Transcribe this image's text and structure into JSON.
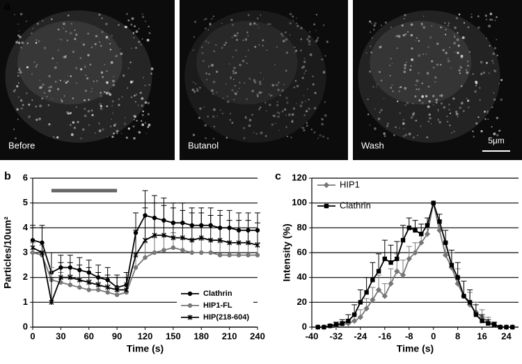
{
  "figure": {
    "panel_a_label": "a",
    "images": [
      {
        "label": "Before",
        "brightness": 1.0
      },
      {
        "label": "Butanol",
        "brightness": 0.6
      },
      {
        "label": "Wash",
        "brightness": 0.95
      }
    ],
    "scale_bar": "5μm"
  },
  "chart_data": [
    {
      "type": "line",
      "panel_label": "b",
      "x_label": "Time (s)",
      "y_label": "Particles/10um²",
      "xlim": [
        0,
        240
      ],
      "xticks": [
        0,
        30,
        60,
        90,
        120,
        150,
        180,
        210,
        240
      ],
      "ylim": [
        0,
        6
      ],
      "yticks": [
        0,
        1,
        2,
        3,
        4,
        5,
        6
      ],
      "grid": true,
      "legend": "lower right",
      "bar_range": {
        "x": [
          20,
          90
        ],
        "y": 5.5,
        "color": "#666666"
      },
      "x": [
        0,
        10,
        20,
        30,
        40,
        50,
        60,
        70,
        80,
        90,
        100,
        110,
        120,
        130,
        140,
        150,
        160,
        170,
        180,
        190,
        200,
        210,
        220,
        230,
        240
      ],
      "series": [
        {
          "name": "Clathrin",
          "color": "#000000",
          "marker": "circle",
          "values": [
            3.5,
            3.4,
            2.2,
            2.4,
            2.4,
            2.3,
            2.2,
            2.0,
            1.9,
            1.6,
            1.7,
            3.8,
            4.5,
            4.4,
            4.3,
            4.2,
            4.2,
            4.1,
            4.1,
            4.1,
            4.0,
            4.0,
            3.9,
            3.9,
            3.9
          ],
          "errors": [
            0.6,
            0.7,
            0.8,
            0.5,
            0.5,
            0.5,
            0.5,
            0.5,
            0.5,
            0.5,
            0.5,
            0.8,
            1.0,
            0.9,
            0.9,
            0.8,
            0.8,
            0.7,
            0.7,
            0.7,
            0.7,
            0.7,
            0.7,
            0.7,
            0.7
          ]
        },
        {
          "name": "HIP1-FL",
          "color": "#777777",
          "marker": "circle",
          "values": [
            3.0,
            2.9,
            1.9,
            1.8,
            1.7,
            1.6,
            1.5,
            1.5,
            1.4,
            1.3,
            1.4,
            2.4,
            2.8,
            3.0,
            3.1,
            3.2,
            3.1,
            3.0,
            3.0,
            3.0,
            2.9,
            2.9,
            2.9,
            2.9,
            2.9
          ],
          "errors": [
            0.4,
            0.4,
            0.5,
            0.4,
            0.4,
            0.4,
            0.4,
            0.3,
            0.3,
            0.3,
            0.4,
            0.5,
            0.6,
            0.6,
            0.6,
            0.6,
            0.5,
            0.5,
            0.5,
            0.5,
            0.5,
            0.5,
            0.5,
            0.5,
            0.5
          ]
        },
        {
          "name": "HIP(218-604)",
          "color": "#000000",
          "marker": "x",
          "values": [
            3.2,
            3.0,
            1.0,
            2.0,
            2.0,
            1.9,
            1.8,
            1.7,
            1.6,
            1.5,
            1.5,
            2.9,
            3.5,
            3.7,
            3.7,
            3.6,
            3.6,
            3.5,
            3.6,
            3.5,
            3.5,
            3.4,
            3.4,
            3.4,
            3.3
          ],
          "errors": [
            0.8,
            1.0,
            1.0,
            0.6,
            0.6,
            0.6,
            0.6,
            0.5,
            0.5,
            0.5,
            0.5,
            1.0,
            1.3,
            1.3,
            1.2,
            1.2,
            1.1,
            1.1,
            1.0,
            1.0,
            1.0,
            0.9,
            0.9,
            0.9,
            0.9
          ]
        }
      ]
    },
    {
      "type": "line",
      "panel_label": "c",
      "x_label": "Time (s)",
      "y_label": "Intensity (%)",
      "xlim": [
        -40,
        28
      ],
      "xticks": [
        -40,
        -32,
        -24,
        -16,
        -8,
        0,
        8,
        16,
        24
      ],
      "ylim": [
        0,
        120
      ],
      "yticks": [
        0,
        20,
        40,
        60,
        80,
        100,
        120
      ],
      "grid": true,
      "legend": "upper left",
      "x": [
        -38,
        -36,
        -34,
        -32,
        -30,
        -28,
        -26,
        -24,
        -22,
        -20,
        -18,
        -16,
        -14,
        -12,
        -10,
        -8,
        -6,
        -4,
        -2,
        0,
        2,
        4,
        6,
        8,
        10,
        12,
        14,
        16,
        18,
        20,
        22,
        24,
        26
      ],
      "series": [
        {
          "name": "HIP1",
          "color": "#777777",
          "marker": "diamond",
          "values": [
            0,
            0,
            1,
            1,
            2,
            3,
            5,
            8,
            15,
            22,
            30,
            25,
            35,
            45,
            42,
            55,
            60,
            68,
            75,
            100,
            78,
            58,
            48,
            35,
            25,
            18,
            12,
            8,
            4,
            2,
            0,
            0,
            0
          ],
          "errors": [
            0,
            0,
            1,
            1,
            2,
            3,
            5,
            6,
            8,
            10,
            12,
            10,
            12,
            14,
            12,
            10,
            8,
            8,
            8,
            0,
            8,
            10,
            12,
            12,
            12,
            10,
            8,
            6,
            4,
            2,
            0,
            0,
            0
          ]
        },
        {
          "name": "Clathrin",
          "color": "#000000",
          "marker": "square",
          "values": [
            0,
            0,
            1,
            2,
            3,
            5,
            10,
            20,
            28,
            38,
            45,
            55,
            52,
            55,
            70,
            80,
            78,
            75,
            82,
            100,
            85,
            68,
            50,
            40,
            25,
            20,
            10,
            5,
            3,
            2,
            0,
            0,
            0
          ],
          "errors": [
            0,
            0,
            1,
            2,
            3,
            5,
            8,
            10,
            12,
            14,
            14,
            15,
            14,
            14,
            12,
            8,
            8,
            8,
            6,
            0,
            6,
            10,
            12,
            12,
            12,
            10,
            8,
            5,
            3,
            2,
            0,
            0,
            0
          ]
        }
      ]
    }
  ]
}
